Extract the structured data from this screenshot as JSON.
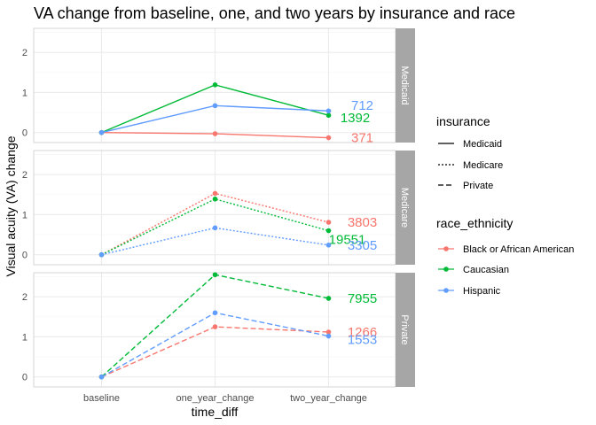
{
  "chart_data": {
    "type": "line",
    "title": "VA change from baseline, one, and two years by insurance and race",
    "xlabel": "time_diff",
    "ylabel": "Visual acuity (VA) change",
    "categories": [
      "baseline",
      "one_year_change",
      "two_year_change"
    ],
    "ylim": [
      -0.25,
      2.6
    ],
    "yticks": [
      0,
      1,
      2
    ],
    "grid": true,
    "legend_position": "right",
    "colors": {
      "Black or African American": "#F8766D",
      "Caucasian": "#00BA38",
      "Hispanic": "#619CFF"
    },
    "legend": {
      "insurance": {
        "title": "insurance",
        "items": [
          {
            "label": "Medicaid",
            "linetype": "solid"
          },
          {
            "label": "Medicare",
            "linetype": "dotted"
          },
          {
            "label": "Private",
            "linetype": "dashed"
          }
        ]
      },
      "race": {
        "title": "race_ethnicity",
        "items": [
          "Black or African American",
          "Caucasian",
          "Hispanic"
        ]
      }
    },
    "panels": [
      {
        "facet": "Medicaid",
        "linetype": "solid",
        "series": [
          {
            "name": "Black or African American",
            "values": [
              0.0,
              -0.03,
              -0.13
            ],
            "n": "371"
          },
          {
            "name": "Caucasian",
            "values": [
              0.0,
              1.19,
              0.43
            ],
            "n": "1392"
          },
          {
            "name": "Hispanic",
            "values": [
              0.0,
              0.67,
              0.54
            ],
            "n": "712"
          }
        ]
      },
      {
        "facet": "Medicare",
        "linetype": "dotted",
        "series": [
          {
            "name": "Black or African American",
            "values": [
              0.0,
              1.53,
              0.81
            ],
            "n": "3803"
          },
          {
            "name": "Caucasian",
            "values": [
              0.0,
              1.39,
              0.6
            ],
            "n": "19551"
          },
          {
            "name": "Hispanic",
            "values": [
              0.0,
              0.67,
              0.24
            ],
            "n": "3305"
          }
        ]
      },
      {
        "facet": "Private",
        "linetype": "dashed",
        "series": [
          {
            "name": "Black or African American",
            "values": [
              0.0,
              1.25,
              1.12
            ],
            "n": "1266"
          },
          {
            "name": "Caucasian",
            "values": [
              0.0,
              2.55,
              1.96
            ],
            "n": "7955"
          },
          {
            "name": "Hispanic",
            "values": [
              0.0,
              1.6,
              1.02
            ],
            "n": "1553"
          }
        ]
      }
    ]
  }
}
